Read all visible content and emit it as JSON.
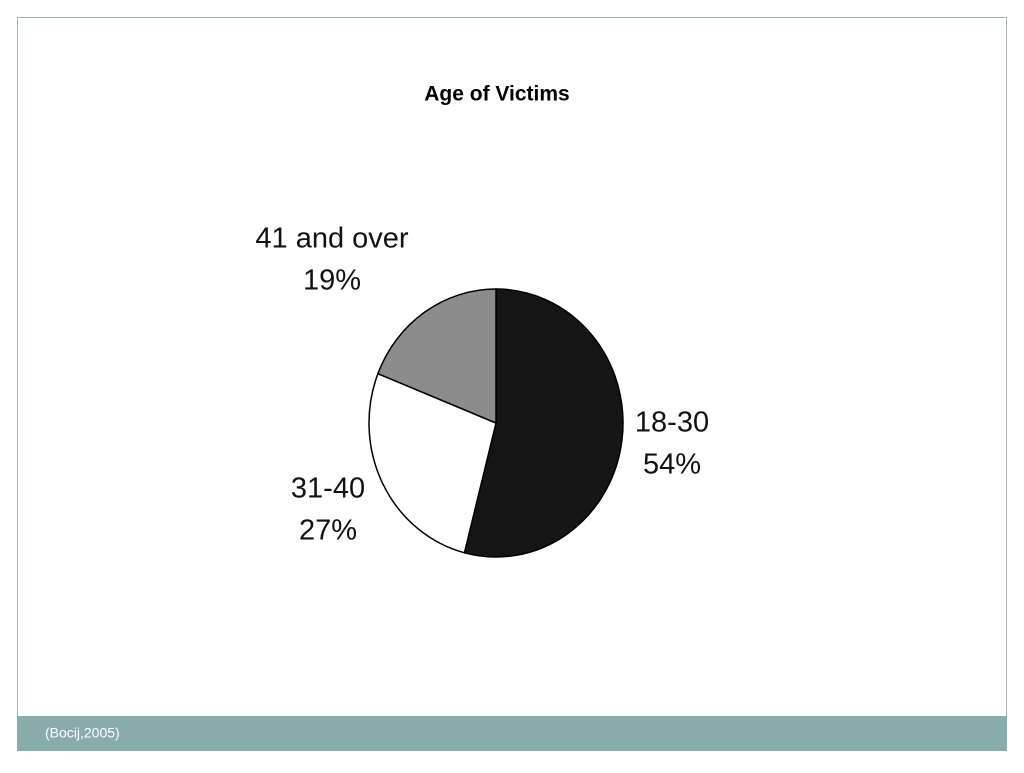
{
  "chart_data": {
    "type": "pie",
    "title": "Age of Victims",
    "categories": [
      "18-30",
      "31-40",
      "41 and over"
    ],
    "values": [
      54,
      27,
      19
    ],
    "value_labels": [
      "54%",
      "27%",
      "19%"
    ],
    "colors": [
      "#161616",
      "#ffffff",
      "#8c8c8c"
    ]
  },
  "footer": {
    "source": "(Bocij,2005)"
  }
}
